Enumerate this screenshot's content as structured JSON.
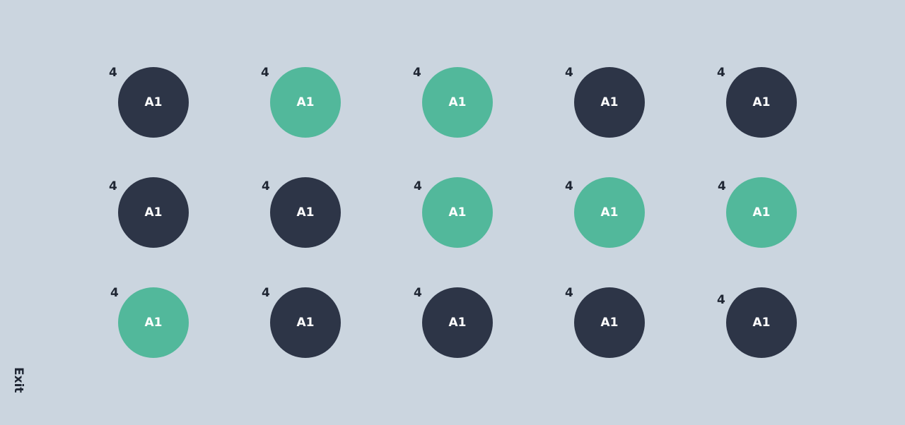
{
  "exit_label": "Exit",
  "colors": {
    "background": "#cbd5df",
    "dark": "#2d3547",
    "green": "#52b89b"
  },
  "tiles": [
    {
      "label": "A1",
      "badge": "4",
      "color": "dark"
    },
    {
      "label": "A1",
      "badge": "4",
      "color": "green"
    },
    {
      "label": "A1",
      "badge": "4",
      "color": "green"
    },
    {
      "label": "A1",
      "badge": "4",
      "color": "dark"
    },
    {
      "label": "A1",
      "badge": "4",
      "color": "dark"
    },
    {
      "label": "A1",
      "badge": "4",
      "color": "dark"
    },
    {
      "label": "A1",
      "badge": "4",
      "color": "dark"
    },
    {
      "label": "A1",
      "badge": "4",
      "color": "green"
    },
    {
      "label": "A1",
      "badge": "4",
      "color": "green"
    },
    {
      "label": "A1",
      "badge": "4",
      "color": "green"
    },
    {
      "label": "A1",
      "badge": "4",
      "color": "green"
    },
    {
      "label": "A1",
      "badge": "4",
      "color": "dark"
    },
    {
      "label": "A1",
      "badge": "4",
      "color": "dark"
    },
    {
      "label": "A1",
      "badge": "4",
      "color": "dark"
    },
    {
      "label": "A1",
      "badge": "4",
      "color": "dark"
    }
  ]
}
